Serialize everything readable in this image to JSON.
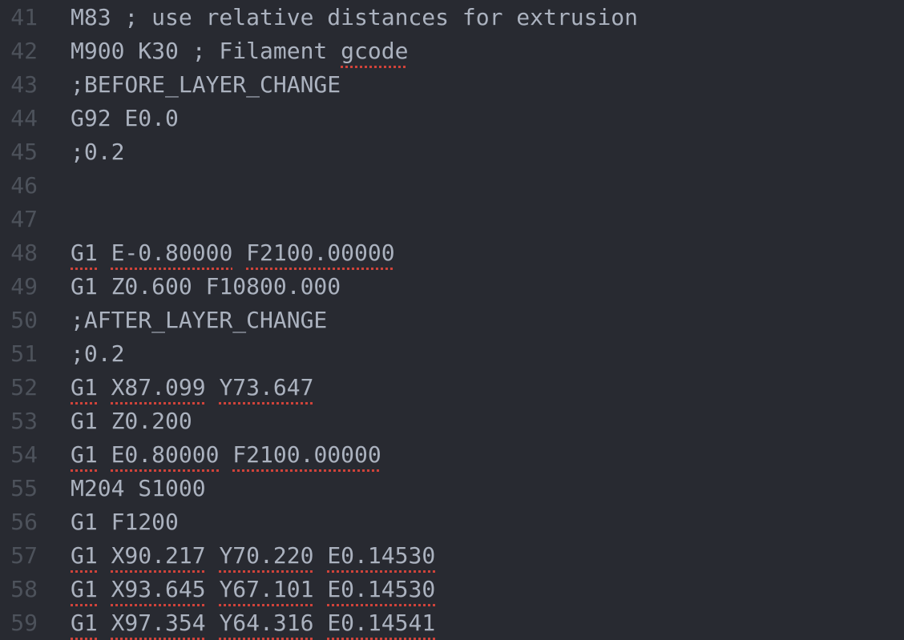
{
  "colors": {
    "background": "#282a31",
    "text": "#abb2bf",
    "gutter": "#4d525b",
    "spellcheck": "#d0433a"
  },
  "lines": [
    {
      "num": "41",
      "tokens": [
        {
          "t": "M83 ; use relative distances for extrusion",
          "err": false
        }
      ]
    },
    {
      "num": "42",
      "tokens": [
        {
          "t": "M900 K30 ; Filament ",
          "err": false
        },
        {
          "t": "gcode",
          "err": true
        }
      ]
    },
    {
      "num": "43",
      "tokens": [
        {
          "t": ";BEFORE_LAYER_CHANGE",
          "err": false
        }
      ]
    },
    {
      "num": "44",
      "tokens": [
        {
          "t": "G92 E0.0",
          "err": false
        }
      ]
    },
    {
      "num": "45",
      "tokens": [
        {
          "t": ";0.2",
          "err": false
        }
      ]
    },
    {
      "num": "46",
      "tokens": []
    },
    {
      "num": "47",
      "tokens": []
    },
    {
      "num": "48",
      "tokens": [
        {
          "t": "G1",
          "err": true
        },
        {
          "t": " ",
          "err": false
        },
        {
          "t": "E-0.80000",
          "err": true
        },
        {
          "t": " ",
          "err": false
        },
        {
          "t": "F2100.00000",
          "err": true
        }
      ]
    },
    {
      "num": "49",
      "tokens": [
        {
          "t": "G1 Z0.600 F10800.000",
          "err": false
        }
      ]
    },
    {
      "num": "50",
      "tokens": [
        {
          "t": ";AFTER_LAYER_CHANGE",
          "err": false
        }
      ]
    },
    {
      "num": "51",
      "tokens": [
        {
          "t": ";0.2",
          "err": false
        }
      ]
    },
    {
      "num": "52",
      "tokens": [
        {
          "t": "G1",
          "err": true
        },
        {
          "t": " ",
          "err": false
        },
        {
          "t": "X87.099",
          "err": true
        },
        {
          "t": " ",
          "err": false
        },
        {
          "t": "Y73.647",
          "err": true
        }
      ]
    },
    {
      "num": "53",
      "tokens": [
        {
          "t": "G1 Z0.200",
          "err": false
        }
      ]
    },
    {
      "num": "54",
      "tokens": [
        {
          "t": "G1",
          "err": true
        },
        {
          "t": " ",
          "err": false
        },
        {
          "t": "E0.80000",
          "err": true
        },
        {
          "t": " ",
          "err": false
        },
        {
          "t": "F2100.00000",
          "err": true
        }
      ]
    },
    {
      "num": "55",
      "tokens": [
        {
          "t": "M204 S1000",
          "err": false
        }
      ]
    },
    {
      "num": "56",
      "tokens": [
        {
          "t": "G1 F1200",
          "err": false
        }
      ]
    },
    {
      "num": "57",
      "tokens": [
        {
          "t": "G1",
          "err": true
        },
        {
          "t": " ",
          "err": false
        },
        {
          "t": "X90.217",
          "err": true
        },
        {
          "t": " ",
          "err": false
        },
        {
          "t": "Y70.220",
          "err": true
        },
        {
          "t": " ",
          "err": false
        },
        {
          "t": "E0.14530",
          "err": true
        }
      ]
    },
    {
      "num": "58",
      "tokens": [
        {
          "t": "G1",
          "err": true
        },
        {
          "t": " ",
          "err": false
        },
        {
          "t": "X93.645",
          "err": true
        },
        {
          "t": " ",
          "err": false
        },
        {
          "t": "Y67.101",
          "err": true
        },
        {
          "t": " ",
          "err": false
        },
        {
          "t": "E0.14530",
          "err": true
        }
      ]
    },
    {
      "num": "59",
      "tokens": [
        {
          "t": "G1",
          "err": true
        },
        {
          "t": " ",
          "err": false
        },
        {
          "t": "X97.354",
          "err": true
        },
        {
          "t": " ",
          "err": false
        },
        {
          "t": "Y64.316",
          "err": true
        },
        {
          "t": " ",
          "err": false
        },
        {
          "t": "E0.14541",
          "err": true
        }
      ]
    }
  ]
}
